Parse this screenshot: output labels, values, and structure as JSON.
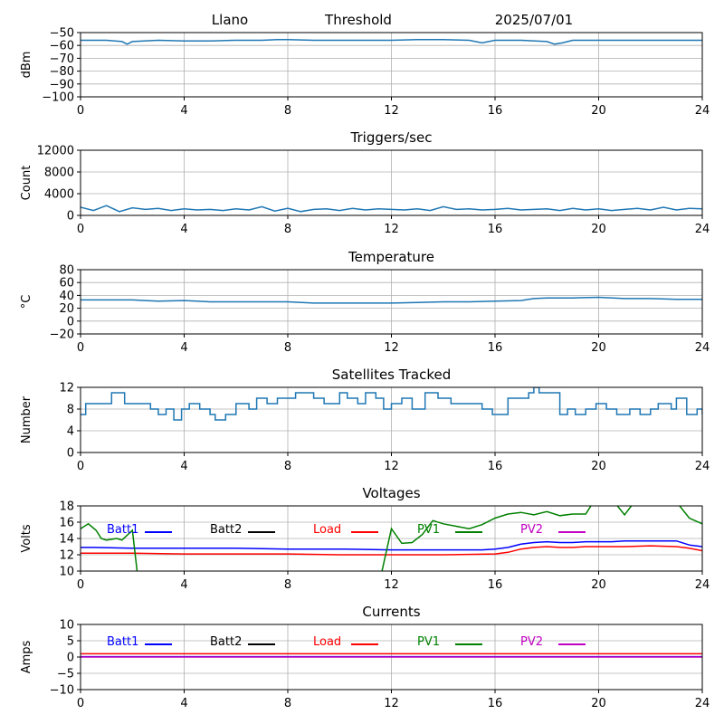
{
  "header": {
    "station": "Llano",
    "mode": "Threshold",
    "date": "2025/07/01"
  },
  "colors": {
    "series": "#1f77b4",
    "grid": "#b0b0b0",
    "batt1": "#0000ff",
    "batt2": "#000000",
    "load": "#ff0000",
    "pv1": "#008000",
    "pv2": "#c000c0"
  },
  "chart_data": [
    {
      "type": "line",
      "id": "signal",
      "title": "",
      "ylabel": "dBm",
      "xlim": [
        0,
        24
      ],
      "ylim": [
        -100,
        -50
      ],
      "xticks": [
        0,
        4,
        8,
        12,
        16,
        20,
        24
      ],
      "yticks": [
        -100,
        -90,
        -80,
        -70,
        -60,
        -50
      ],
      "series": [
        {
          "color": "#1f77b4",
          "x": [
            0,
            1,
            1.6,
            1.8,
            2,
            3,
            4,
            5,
            6,
            7,
            7.6,
            8,
            9,
            10,
            11,
            12,
            13,
            14,
            15,
            15.5,
            16,
            17,
            18,
            18.3,
            18.6,
            19,
            20,
            21,
            22,
            23,
            24
          ],
          "y": [
            -56,
            -56,
            -57,
            -59,
            -57,
            -56,
            -56.5,
            -56.5,
            -56,
            -56,
            -55.5,
            -55.5,
            -56,
            -56,
            -56,
            -56,
            -55.5,
            -55.5,
            -56,
            -58,
            -56,
            -56,
            -57,
            -59,
            -58,
            -56,
            -56,
            -56,
            -56,
            -56,
            -56
          ]
        }
      ]
    },
    {
      "type": "line",
      "id": "triggers",
      "title": "Triggers/sec",
      "ylabel": "Count",
      "xlim": [
        0,
        24
      ],
      "ylim": [
        0,
        12000
      ],
      "xticks": [
        0,
        4,
        8,
        12,
        16,
        20,
        24
      ],
      "yticks": [
        0,
        4000,
        8000,
        12000
      ],
      "series": [
        {
          "color": "#1f77b4",
          "x": [
            0,
            0.5,
            1,
            1.5,
            2,
            2.5,
            3,
            3.5,
            4,
            4.5,
            5,
            5.5,
            6,
            6.5,
            7,
            7.5,
            8,
            8.5,
            9,
            9.5,
            10,
            10.5,
            11,
            11.5,
            12,
            12.5,
            13,
            13.5,
            14,
            14.5,
            15,
            15.5,
            16,
            16.5,
            17,
            17.5,
            18,
            18.5,
            19,
            19.5,
            20,
            20.5,
            21,
            21.5,
            22,
            22.5,
            23,
            23.5,
            24
          ],
          "y": [
            1500,
            900,
            1800,
            700,
            1400,
            1100,
            1300,
            900,
            1200,
            1000,
            1100,
            900,
            1200,
            1000,
            1600,
            800,
            1300,
            700,
            1100,
            1200,
            900,
            1300,
            1000,
            1200,
            1100,
            1000,
            1200,
            900,
            1600,
            1100,
            1200,
            1000,
            1100,
            1300,
            1000,
            1100,
            1200,
            900,
            1300,
            1000,
            1200,
            900,
            1100,
            1300,
            1000,
            1500,
            1000,
            1300,
            1200
          ]
        }
      ]
    },
    {
      "type": "line",
      "id": "temperature",
      "title": "Temperature",
      "ylabel": "°C",
      "xlim": [
        0,
        24
      ],
      "ylim": [
        -20,
        80
      ],
      "xticks": [
        0,
        4,
        8,
        12,
        16,
        20,
        24
      ],
      "yticks": [
        -20,
        0,
        20,
        40,
        60,
        80
      ],
      "series": [
        {
          "color": "#1f77b4",
          "x": [
            0,
            2,
            2.5,
            3,
            4,
            4.5,
            5,
            6,
            8,
            9,
            10,
            12,
            13,
            14,
            15,
            16,
            17,
            17.5,
            18,
            19,
            20,
            21,
            22,
            23,
            24
          ],
          "y": [
            33,
            33,
            32,
            31,
            32,
            31,
            30,
            30,
            30,
            28,
            28,
            28,
            29,
            30,
            30,
            31,
            32,
            35,
            36,
            36,
            37,
            35,
            35,
            34,
            34
          ]
        }
      ]
    },
    {
      "type": "line",
      "id": "satellites",
      "title": "Satellites Tracked",
      "ylabel": "Number",
      "xlim": [
        0,
        24
      ],
      "ylim": [
        0,
        12
      ],
      "xticks": [
        0,
        4,
        8,
        12,
        16,
        20,
        24
      ],
      "yticks": [
        0,
        4,
        8,
        12
      ],
      "series": [
        {
          "color": "#1f77b4",
          "step": true,
          "x": [
            0,
            0.2,
            1.2,
            1.5,
            1.7,
            2.3,
            2.7,
            3,
            3.3,
            3.6,
            3.9,
            4.2,
            4.6,
            5,
            5.2,
            5.6,
            6.0,
            6.5,
            6.8,
            7.2,
            7.6,
            8,
            8.3,
            9,
            9.4,
            10,
            10.3,
            10.7,
            11,
            11.4,
            11.7,
            12,
            12.4,
            12.8,
            13.3,
            13.8,
            14.3,
            15,
            15.5,
            15.9,
            16.5,
            17.3,
            17.5,
            17.7,
            18.5,
            18.8,
            19.1,
            19.5,
            19.9,
            20.3,
            20.7,
            21.2,
            21.6,
            22,
            22.3,
            22.8,
            23,
            23.4,
            23.8,
            24
          ],
          "y": [
            7,
            9,
            11,
            11,
            9,
            9,
            8,
            7,
            8,
            6,
            8,
            9,
            8,
            7,
            6,
            7,
            9,
            8,
            10,
            9,
            10,
            10,
            11,
            10,
            9,
            11,
            10,
            9,
            11,
            10,
            8,
            9,
            10,
            8,
            11,
            10,
            9,
            9,
            8,
            7,
            10,
            11,
            12,
            11,
            7,
            8,
            7,
            8,
            9,
            8,
            7,
            8,
            7,
            8,
            9,
            8,
            10,
            7,
            8,
            7
          ]
        }
      ]
    },
    {
      "type": "line",
      "id": "voltages",
      "title": "Voltages",
      "ylabel": "Volts",
      "xlim": [
        0,
        24
      ],
      "ylim": [
        10,
        18
      ],
      "xticks": [
        0,
        4,
        8,
        12,
        16,
        20,
        24
      ],
      "yticks": [
        10,
        12,
        14,
        16,
        18
      ],
      "legend": [
        "Batt1",
        "Batt2",
        "Load",
        "PV1",
        "PV2"
      ],
      "series": [
        {
          "name": "Batt1",
          "color": "#0000ff",
          "x": [
            0,
            0.5,
            2,
            4,
            6,
            8,
            10,
            12,
            14,
            15.5,
            16,
            16.5,
            17,
            17.5,
            18,
            18.5,
            19,
            19.5,
            20,
            20.5,
            21,
            22,
            23,
            23.5,
            24
          ],
          "y": [
            12.9,
            12.9,
            12.8,
            12.8,
            12.8,
            12.7,
            12.7,
            12.6,
            12.6,
            12.6,
            12.7,
            12.9,
            13.3,
            13.5,
            13.6,
            13.5,
            13.5,
            13.6,
            13.6,
            13.6,
            13.7,
            13.7,
            13.7,
            13.2,
            13.0
          ]
        },
        {
          "name": "Load",
          "color": "#ff0000",
          "x": [
            0,
            2,
            4,
            6,
            8,
            10,
            12,
            14,
            16,
            16.5,
            17,
            17.5,
            18,
            18.5,
            19,
            19.5,
            20,
            21,
            22,
            23,
            23.5,
            24
          ],
          "y": [
            12.2,
            12.2,
            12.1,
            12.1,
            12.1,
            12.0,
            12.0,
            12.0,
            12.1,
            12.3,
            12.7,
            12.9,
            13.0,
            12.9,
            12.9,
            13.0,
            13.0,
            13.0,
            13.1,
            13.0,
            12.8,
            12.5
          ]
        },
        {
          "name": "PV1",
          "color": "#008000",
          "x": [
            0,
            0.3,
            0.6,
            0.8,
            1.0,
            1.4,
            1.6,
            2.0,
            2.2,
            11.6,
            12.0,
            12.4,
            12.8,
            13.2,
            13.6,
            14,
            14.5,
            15,
            15.5,
            16,
            16.5,
            17,
            17.5,
            18,
            18.5,
            19,
            19.5,
            19.8,
            20.2,
            20.6,
            21,
            21.5,
            22,
            22.5,
            23,
            23.5,
            24
          ],
          "y": [
            15.2,
            15.8,
            15.0,
            14.0,
            13.8,
            14.0,
            13.8,
            15.0,
            9.5,
            9.5,
            15.2,
            13.4,
            13.5,
            14.5,
            16.2,
            15.8,
            15.5,
            15.2,
            15.7,
            16.5,
            17.0,
            17.2,
            16.9,
            17.3,
            16.8,
            17.0,
            17.0,
            18.5,
            18.5,
            18.5,
            16.9,
            19.0,
            19.0,
            19.0,
            18.5,
            16.5,
            15.8
          ]
        }
      ]
    },
    {
      "type": "line",
      "id": "currents",
      "title": "Currents",
      "ylabel": "Amps",
      "xlim": [
        0,
        24
      ],
      "ylim": [
        -10,
        10
      ],
      "xticks": [
        0,
        4,
        8,
        12,
        16,
        20,
        24
      ],
      "yticks": [
        -10,
        -5,
        0,
        5,
        10
      ],
      "legend": [
        "Batt1",
        "Batt2",
        "Load",
        "PV1",
        "PV2"
      ],
      "series": [
        {
          "name": "Load",
          "color": "#ff0000",
          "x": [
            0,
            4,
            8,
            12,
            16,
            20,
            24
          ],
          "y": [
            1.0,
            1.0,
            1.0,
            1.0,
            1.0,
            1.0,
            1.0
          ]
        },
        {
          "name": "Batt1",
          "color": "#0000ff",
          "x": [
            0,
            4,
            8,
            12,
            16,
            20,
            24
          ],
          "y": [
            0.1,
            0.1,
            0.1,
            0.1,
            0.1,
            0.1,
            0.1
          ]
        },
        {
          "name": "PV2",
          "color": "#c000c0",
          "x": [
            0,
            4,
            8,
            12,
            16,
            20,
            24
          ],
          "y": [
            0.0,
            0.0,
            0.0,
            0.0,
            0.0,
            0.0,
            0.0
          ]
        }
      ]
    }
  ]
}
